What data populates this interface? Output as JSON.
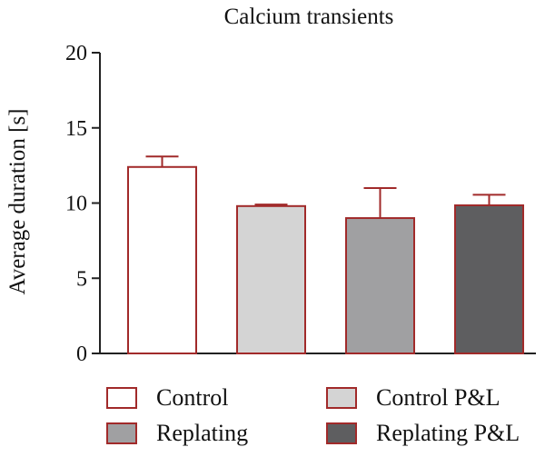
{
  "chart_data": {
    "type": "bar",
    "title": "Calcium transients",
    "xlabel": "",
    "ylabel": "Average duration [s]",
    "ylim": [
      0,
      20
    ],
    "yticks": [
      0,
      5,
      10,
      15,
      20
    ],
    "categories": [
      "Control",
      "Control P&L",
      "Replating",
      "Replating P&L"
    ],
    "values": [
      12.4,
      9.8,
      9.0,
      9.85
    ],
    "errors": [
      0.7,
      0.1,
      2.0,
      0.7
    ],
    "colors": [
      "#ffffff",
      "#d4d4d4",
      "#a0a0a2",
      "#5e5e60"
    ],
    "edge_color": "#a12a2a",
    "grid": false,
    "legend_position": "bottom"
  }
}
